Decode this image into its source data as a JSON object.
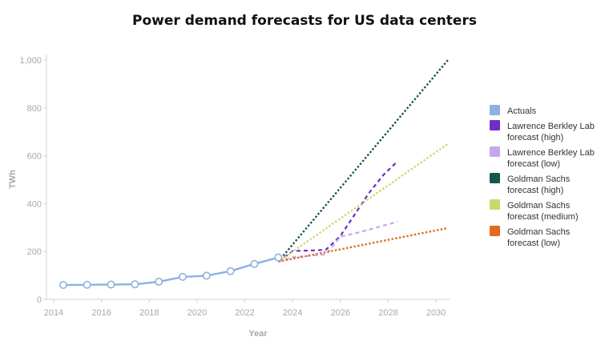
{
  "colors": {
    "actuals": "#8fb0e3",
    "lbl_high": "#6e2ec7",
    "lbl_low": "#c5a8ec",
    "gs_high": "#13584d",
    "gs_medium": "#cbd96a",
    "gs_low": "#e06a1e"
  },
  "chart_data": {
    "type": "line",
    "title": "Power demand forecasts for US data centers",
    "xlabel": "Year",
    "ylabel": "TWh",
    "xlim": [
      2013.7,
      2030.6
    ],
    "ylim": [
      0,
      1000
    ],
    "x_ticks": [
      "2014",
      "2016",
      "2018",
      "2020",
      "2022",
      "2024",
      "2026",
      "2028",
      "2030"
    ],
    "y_ticks": [
      "0",
      "200",
      "400",
      "600",
      "800",
      "1,000"
    ],
    "grid": false,
    "legend_position": "right",
    "series": [
      {
        "name": "Actuals",
        "color_key": "actuals",
        "style": "solid-markers",
        "x": [
          2014.4,
          2015.4,
          2016.4,
          2017.4,
          2018.4,
          2019.4,
          2020.4,
          2021.4,
          2022.4,
          2023.4
        ],
        "y": [
          60,
          61,
          62,
          63,
          74,
          94,
          99,
          118,
          148,
          175
        ]
      },
      {
        "name": "Lawrence Berkley Lab forecast (high)",
        "color_key": "lbl_high",
        "style": "dashed",
        "x": [
          2023.4,
          2024.0,
          2025.0,
          2025.4,
          2026.0,
          2026.6,
          2027.2,
          2027.8,
          2028.4
        ],
        "y": [
          158,
          202,
          205,
          208,
          265,
          355,
          445,
          520,
          578
        ]
      },
      {
        "name": "Lawrence Berkley Lab forecast (low)",
        "color_key": "lbl_low",
        "style": "dashed",
        "x": [
          2023.4,
          2024.0,
          2025.4,
          2026.0,
          2026.7,
          2027.5,
          2028.4
        ],
        "y": [
          158,
          176,
          188,
          262,
          278,
          300,
          325
        ]
      },
      {
        "name": "Goldman Sachs forecast (high)",
        "color_key": "gs_high",
        "style": "dotted",
        "x": [
          2023.4,
          2030.5
        ],
        "y": [
          158,
          1000
        ]
      },
      {
        "name": "Goldman Sachs forecast (medium)",
        "color_key": "gs_medium",
        "style": "dotted",
        "x": [
          2023.4,
          2030.5
        ],
        "y": [
          158,
          650
        ]
      },
      {
        "name": "Goldman Sachs forecast (low)",
        "color_key": "gs_low",
        "style": "dotted",
        "x": [
          2023.4,
          2030.5
        ],
        "y": [
          158,
          298
        ]
      }
    ],
    "legend": [
      {
        "color_key": "actuals",
        "lines": [
          "Actuals"
        ]
      },
      {
        "color_key": "lbl_high",
        "lines": [
          "Lawrence Berkley Lab",
          "forecast (high)"
        ]
      },
      {
        "color_key": "lbl_low",
        "lines": [
          "Lawrence Berkley Lab",
          "forecast (low)"
        ]
      },
      {
        "color_key": "gs_high",
        "lines": [
          "Goldman Sachs",
          "forecast (high)"
        ]
      },
      {
        "color_key": "gs_medium",
        "lines": [
          "Goldman Sachs",
          "forecast (medium)"
        ]
      },
      {
        "color_key": "gs_low",
        "lines": [
          "Goldman Sachs",
          "forecast (low)"
        ]
      }
    ]
  }
}
